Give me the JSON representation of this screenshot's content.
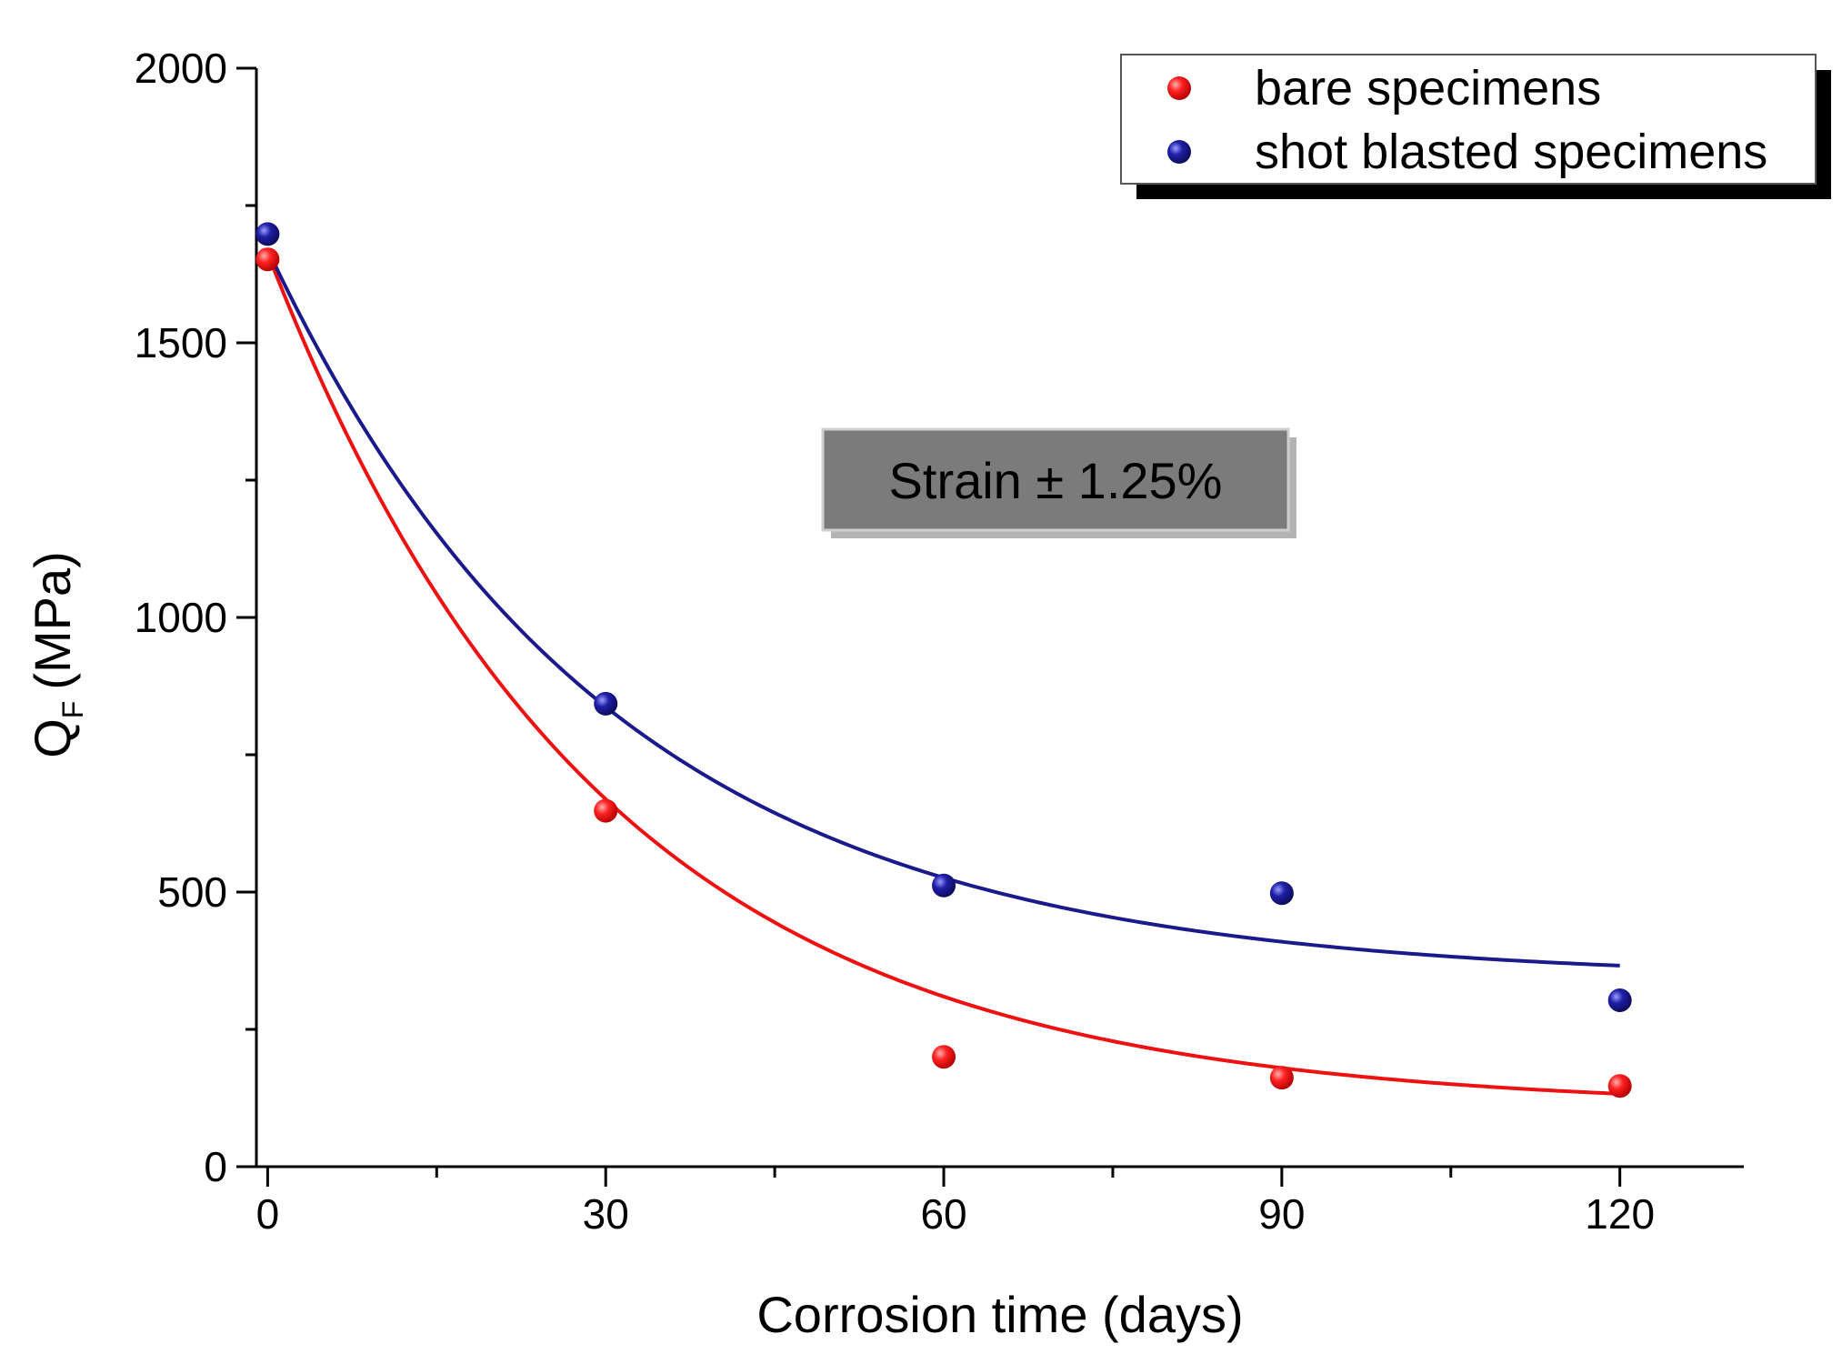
{
  "chart_data": {
    "type": "scatter",
    "title": "",
    "xlabel": "Corrosion time (days)",
    "ylabel_main": "Q",
    "ylabel_sub": "F",
    "ylabel_unit": "(MPa)",
    "xlim": [
      -1,
      131
    ],
    "ylim": [
      0,
      2000
    ],
    "xticks": [
      0,
      30,
      60,
      90,
      120
    ],
    "xticks_minor": [
      15,
      45,
      75,
      105
    ],
    "yticks": [
      0,
      500,
      1000,
      1500,
      2000
    ],
    "yticks_minor": [
      250,
      750,
      1250,
      1750
    ],
    "annotation": "Strain ± 1.25%",
    "legend_position": "top-right",
    "series": [
      {
        "name": "bare specimens",
        "color": "#ee1111",
        "points": [
          {
            "x": 0,
            "y": 1652
          },
          {
            "x": 30,
            "y": 648
          },
          {
            "x": 60,
            "y": 200
          },
          {
            "x": 90,
            "y": 162
          },
          {
            "x": 120,
            "y": 147
          }
        ],
        "fit": {
          "model": "exponential decay",
          "y0": 106,
          "A": 1557,
          "tau": 29.5
        }
      },
      {
        "name": "shot blasted specimens",
        "color": "#1a1a8c",
        "points": [
          {
            "x": 0,
            "y": 1698
          },
          {
            "x": 30,
            "y": 843
          },
          {
            "x": 60,
            "y": 512
          },
          {
            "x": 90,
            "y": 498
          },
          {
            "x": 120,
            "y": 303
          }
        ],
        "fit": {
          "model": "exponential decay",
          "y0": 340,
          "A": 1330,
          "tau": 30.5
        }
      }
    ]
  }
}
